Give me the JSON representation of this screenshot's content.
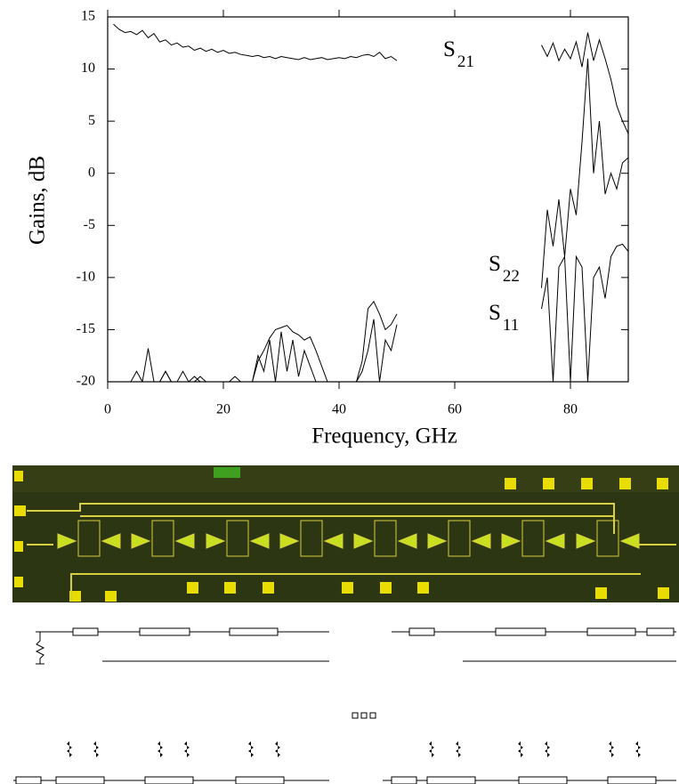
{
  "chart_data": {
    "type": "line",
    "x_label": "Frequency, GHz",
    "y_label": "Gains, dB",
    "x": [
      0,
      1,
      2,
      3,
      4,
      5,
      6,
      7,
      8,
      9,
      10,
      11,
      12,
      13,
      14,
      15,
      16,
      17,
      18,
      19,
      20,
      21,
      22,
      23,
      24,
      25,
      26,
      27,
      28,
      29,
      30,
      31,
      32,
      33,
      34,
      35,
      36,
      37,
      38,
      39,
      40,
      41,
      42,
      43,
      44,
      45,
      46,
      47,
      48,
      49,
      50,
      51,
      52,
      53,
      54,
      55,
      56,
      57,
      58,
      59,
      60,
      61,
      62,
      63,
      64,
      65,
      66,
      67,
      68,
      69,
      70,
      71,
      72,
      73,
      74,
      75,
      76,
      77,
      78,
      79,
      80,
      81,
      82,
      83,
      84,
      85,
      86,
      87,
      88,
      89,
      90
    ],
    "series": [
      {
        "name": "S21",
        "color": "#000000",
        "values": [
          null,
          14.3,
          13.8,
          13.5,
          13.6,
          13.3,
          13.7,
          13.0,
          13.4,
          12.6,
          12.8,
          12.3,
          12.5,
          12.1,
          12.2,
          11.8,
          12.0,
          11.7,
          11.9,
          11.6,
          11.8,
          11.5,
          11.6,
          11.4,
          11.3,
          11.2,
          11.3,
          11.1,
          11.2,
          11.0,
          11.2,
          11.1,
          11.0,
          10.9,
          11.1,
          10.9,
          11.0,
          11.1,
          10.9,
          11.0,
          11.1,
          11.0,
          11.2,
          11.1,
          11.3,
          11.4,
          11.2,
          11.6,
          11.0,
          11.2,
          10.8,
          null,
          null,
          null,
          null,
          null,
          null,
          null,
          null,
          null,
          null,
          null,
          null,
          null,
          null,
          null,
          null,
          null,
          null,
          null,
          null,
          null,
          null,
          null,
          null,
          12.3,
          11.2,
          12.5,
          10.8,
          11.9,
          11.0,
          12.6,
          10.2,
          13.5,
          10.8,
          12.8,
          11.0,
          9.0,
          6.5,
          5.0,
          3.8
        ]
      },
      {
        "name": "S22",
        "color": "#000000",
        "values": [
          -20,
          -20,
          -20,
          -20,
          -20,
          -20,
          -20,
          -16.8,
          -20,
          -20,
          -19,
          -20,
          -20,
          -19,
          -20,
          -20,
          -19.5,
          -20,
          -20,
          -20,
          -20,
          -20,
          -19.5,
          -20,
          -20,
          -20,
          -18,
          -17,
          -15.8,
          -15,
          -14.8,
          -14.6,
          -15.2,
          -15.5,
          -16,
          -15.7,
          -17,
          -18.5,
          -20,
          -20,
          -20,
          -20,
          -20,
          -20,
          -18,
          -13,
          -12.3,
          -13.5,
          -15,
          -14.5,
          -13.5,
          null,
          null,
          null,
          null,
          null,
          null,
          null,
          null,
          null,
          null,
          null,
          null,
          null,
          null,
          null,
          null,
          null,
          null,
          null,
          null,
          null,
          null,
          null,
          null,
          -11,
          -3.5,
          -7,
          -2.5,
          -8,
          -1.5,
          -4,
          3,
          11,
          0,
          5,
          -2,
          0,
          -1.5,
          1,
          1.5
        ]
      },
      {
        "name": "S11",
        "color": "#000000",
        "values": [
          -20,
          -20,
          -20,
          -20,
          -20,
          -19,
          -20,
          -20,
          -20,
          -20,
          -19,
          -20,
          -20,
          -20,
          -20,
          -19.5,
          -20,
          -20,
          -20,
          -20,
          -20,
          -20,
          -20,
          -20,
          -20,
          -20,
          -17.5,
          -19,
          -16,
          -20,
          -15.2,
          -19,
          -16,
          -19.5,
          -17,
          -18.5,
          -20,
          -20,
          -20,
          -20,
          -20,
          -20,
          -20,
          -20,
          -19,
          -17,
          -14,
          -20,
          -16,
          -17,
          -14.5,
          null,
          null,
          null,
          null,
          null,
          null,
          null,
          null,
          null,
          null,
          null,
          null,
          null,
          null,
          null,
          null,
          null,
          null,
          null,
          null,
          null,
          null,
          null,
          null,
          -13,
          -10,
          -20,
          -9,
          -8,
          -20,
          -8,
          -9,
          -20,
          -10,
          -9,
          -12,
          -8,
          -7,
          -6.8,
          -7.5
        ]
      }
    ],
    "xlim": [
      0,
      90
    ],
    "xticks": [
      0,
      20,
      40,
      60,
      80
    ],
    "ylim": [
      -20,
      15
    ],
    "yticks": [
      -20,
      -15,
      -10,
      -5,
      0,
      5,
      10,
      15
    ],
    "grid": false
  }
}
